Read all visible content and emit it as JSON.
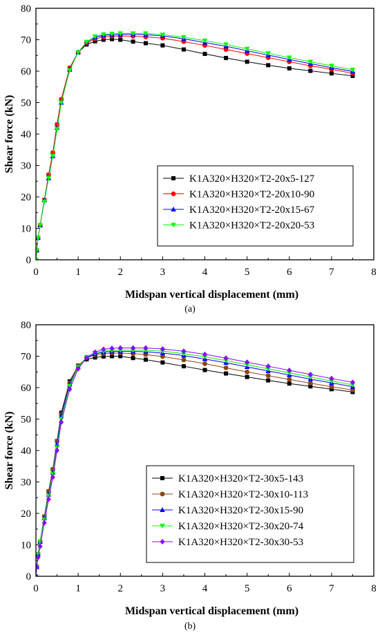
{
  "chart_data": [
    {
      "type": "line",
      "panel_label": "(a)",
      "xlabel": "Midspan vertical displacement (mm)",
      "ylabel": "Shear force (kN)",
      "xlim": [
        0,
        8
      ],
      "ylim": [
        0,
        80
      ],
      "xticks": [
        "0",
        "1",
        "2",
        "3",
        "4",
        "5",
        "6",
        "7",
        "8"
      ],
      "yticks": [
        "0",
        "10",
        "20",
        "30",
        "40",
        "50",
        "60",
        "70",
        "80"
      ],
      "grid": false,
      "legend_position": "center-right",
      "series": [
        {
          "name": "K1A320×H320×T2-20x5-127",
          "color": "#000000",
          "marker": "square",
          "x": [
            0,
            0.02,
            0.05,
            0.1,
            0.2,
            0.3,
            0.4,
            0.5,
            0.6,
            0.8,
            1.0,
            1.2,
            1.4,
            1.6,
            1.8,
            2.0,
            2.3,
            2.6,
            3.0,
            3.5,
            4.0,
            4.5,
            5.0,
            5.5,
            6.0,
            6.5,
            7.0,
            7.5
          ],
          "y": [
            0,
            3,
            7,
            11,
            19,
            27,
            34,
            43,
            51,
            61,
            66,
            68.5,
            69.5,
            70.0,
            70.2,
            70.0,
            69.4,
            68.9,
            68.2,
            66.9,
            65.5,
            64.2,
            63.0,
            61.9,
            60.9,
            60.1,
            59.3,
            58.5
          ]
        },
        {
          "name": "K1A320×H320×T2-20x10-90",
          "color": "#ff0000",
          "marker": "circle",
          "x": [
            0,
            0.02,
            0.05,
            0.1,
            0.2,
            0.3,
            0.4,
            0.5,
            0.6,
            0.8,
            1.0,
            1.2,
            1.4,
            1.6,
            1.8,
            2.0,
            2.3,
            2.6,
            3.0,
            3.5,
            4.0,
            4.5,
            5.0,
            5.5,
            6.0,
            6.5,
            7.0,
            7.5
          ],
          "y": [
            0,
            3,
            7,
            11,
            19,
            27,
            34,
            43,
            51,
            61,
            66,
            69,
            70.3,
            70.9,
            71.1,
            71.2,
            71.1,
            70.9,
            70.5,
            69.4,
            68.2,
            66.9,
            65.6,
            64.3,
            63.0,
            61.7,
            60.6,
            59.3
          ]
        },
        {
          "name": "K1A320×H320×T2-20x15-67",
          "color": "#0000ff",
          "marker": "triangle",
          "x": [
            0,
            0.02,
            0.05,
            0.1,
            0.2,
            0.3,
            0.4,
            0.5,
            0.6,
            0.8,
            1.0,
            1.2,
            1.4,
            1.6,
            1.8,
            2.0,
            2.3,
            2.6,
            3.0,
            3.5,
            4.0,
            4.5,
            5.0,
            5.5,
            6.0,
            6.5,
            7.0,
            7.5
          ],
          "y": [
            0,
            3,
            7,
            11,
            19,
            26,
            33,
            42,
            50,
            60.5,
            66,
            69.2,
            70.8,
            71.4,
            71.6,
            71.7,
            71.7,
            71.6,
            71.2,
            70.3,
            69.1,
            67.9,
            66.5,
            65.1,
            63.7,
            62.4,
            61.1,
            59.9
          ]
        },
        {
          "name": "K1A320×H320×T2-20x20-53",
          "color": "#00ff00",
          "marker": "triangle-down",
          "x": [
            0,
            0.02,
            0.05,
            0.1,
            0.2,
            0.3,
            0.4,
            0.5,
            0.6,
            0.8,
            1.0,
            1.2,
            1.4,
            1.6,
            1.8,
            2.0,
            2.3,
            2.6,
            3.0,
            3.5,
            4.0,
            4.5,
            5.0,
            5.5,
            6.0,
            6.5,
            7.0,
            7.5
          ],
          "y": [
            0,
            3,
            7,
            11,
            18.5,
            26,
            33,
            41.5,
            50,
            60.3,
            66,
            69.3,
            71.0,
            71.7,
            71.9,
            72.0,
            72.0,
            72.0,
            71.6,
            70.8,
            69.7,
            68.5,
            67.1,
            65.7,
            64.3,
            63.0,
            61.7,
            60.4
          ]
        }
      ]
    },
    {
      "type": "line",
      "panel_label": "(b)",
      "xlabel": "Midspan vertical displacement (mm)",
      "ylabel": "Shear force (kN)",
      "xlim": [
        0,
        8
      ],
      "ylim": [
        0,
        80
      ],
      "xticks": [
        "0",
        "1",
        "2",
        "3",
        "4",
        "5",
        "6",
        "7",
        "8"
      ],
      "yticks": [
        "0",
        "10",
        "20",
        "30",
        "40",
        "50",
        "60",
        "70",
        "80"
      ],
      "grid": false,
      "legend_position": "center-right",
      "series": [
        {
          "name": "K1A320×H320×T2-30x5-143",
          "color": "#000000",
          "marker": "square",
          "x": [
            0,
            0.02,
            0.05,
            0.1,
            0.2,
            0.3,
            0.4,
            0.5,
            0.6,
            0.8,
            1.0,
            1.2,
            1.4,
            1.6,
            1.8,
            2.0,
            2.3,
            2.6,
            3.0,
            3.5,
            4.0,
            4.5,
            5.0,
            5.5,
            6.0,
            6.5,
            7.0,
            7.5
          ],
          "y": [
            0,
            3,
            7,
            11,
            19,
            27,
            34,
            43,
            52,
            62,
            67,
            69,
            69.6,
            69.9,
            70.0,
            70.0,
            69.4,
            68.9,
            68.0,
            66.8,
            65.6,
            64.5,
            63.4,
            62.3,
            61.3,
            60.4,
            59.5,
            58.6
          ]
        },
        {
          "name": "K1A320×H320×T2-30x10-113",
          "color": "#8b4513",
          "marker": "circle",
          "x": [
            0,
            0.02,
            0.05,
            0.1,
            0.2,
            0.3,
            0.4,
            0.5,
            0.6,
            0.8,
            1.0,
            1.2,
            1.4,
            1.6,
            1.8,
            2.0,
            2.3,
            2.6,
            3.0,
            3.5,
            4.0,
            4.5,
            5.0,
            5.5,
            6.0,
            6.5,
            7.0,
            7.5
          ],
          "y": [
            0,
            3,
            7,
            11,
            19,
            27,
            34,
            43,
            51.5,
            61.5,
            67,
            69.5,
            70.4,
            70.8,
            71.0,
            71.0,
            70.8,
            70.5,
            69.9,
            68.8,
            67.6,
            66.3,
            65.0,
            63.8,
            62.6,
            61.4,
            60.3,
            59.2
          ]
        },
        {
          "name": "K1A320×H320×T2-30x15-90",
          "color": "#0000ff",
          "marker": "triangle",
          "x": [
            0,
            0.02,
            0.05,
            0.1,
            0.2,
            0.3,
            0.4,
            0.5,
            0.6,
            0.8,
            1.0,
            1.2,
            1.4,
            1.6,
            1.8,
            2.0,
            2.3,
            2.6,
            3.0,
            3.5,
            4.0,
            4.5,
            5.0,
            5.5,
            6.0,
            6.5,
            7.0,
            7.5
          ],
          "y": [
            0,
            3,
            7,
            11,
            18.5,
            26,
            33,
            42,
            51,
            61,
            66.5,
            69.5,
            70.7,
            71.3,
            71.5,
            71.5,
            71.5,
            71.4,
            71.0,
            70.2,
            69.1,
            67.9,
            66.6,
            65.3,
            64.0,
            62.7,
            61.5,
            60.3
          ]
        },
        {
          "name": "K1A320×H320×T2-30x20-74",
          "color": "#00ff00",
          "marker": "triangle-down",
          "x": [
            0,
            0.02,
            0.05,
            0.1,
            0.2,
            0.3,
            0.4,
            0.5,
            0.6,
            0.8,
            1.0,
            1.2,
            1.4,
            1.6,
            1.8,
            2.0,
            2.3,
            2.6,
            3.0,
            3.5,
            4.0,
            4.5,
            5.0,
            5.5,
            6.0,
            6.5,
            7.0,
            7.5
          ],
          "y": [
            0,
            3,
            7,
            11,
            18,
            25.5,
            32.5,
            41,
            50,
            60.5,
            66.5,
            69.7,
            71.0,
            71.6,
            71.8,
            71.9,
            71.9,
            71.9,
            71.6,
            70.8,
            69.8,
            68.6,
            67.3,
            66.0,
            64.7,
            63.4,
            62.1,
            60.9
          ]
        },
        {
          "name": "K1A320×H320×T2-30x30-53",
          "color": "#8b00ff",
          "marker": "diamond",
          "x": [
            0,
            0.02,
            0.05,
            0.1,
            0.2,
            0.3,
            0.4,
            0.5,
            0.6,
            0.8,
            1.0,
            1.2,
            1.4,
            1.6,
            1.8,
            2.0,
            2.3,
            2.6,
            3.0,
            3.5,
            4.0,
            4.5,
            5.0,
            5.5,
            6.0,
            6.5,
            7.0,
            7.5
          ],
          "y": [
            0,
            3,
            6,
            9.5,
            17,
            24.5,
            31.5,
            40,
            49,
            59.5,
            66,
            69.5,
            71.3,
            72.2,
            72.5,
            72.6,
            72.6,
            72.6,
            72.3,
            71.6,
            70.6,
            69.4,
            68.1,
            66.8,
            65.5,
            64.2,
            62.9,
            61.7
          ]
        }
      ]
    }
  ]
}
